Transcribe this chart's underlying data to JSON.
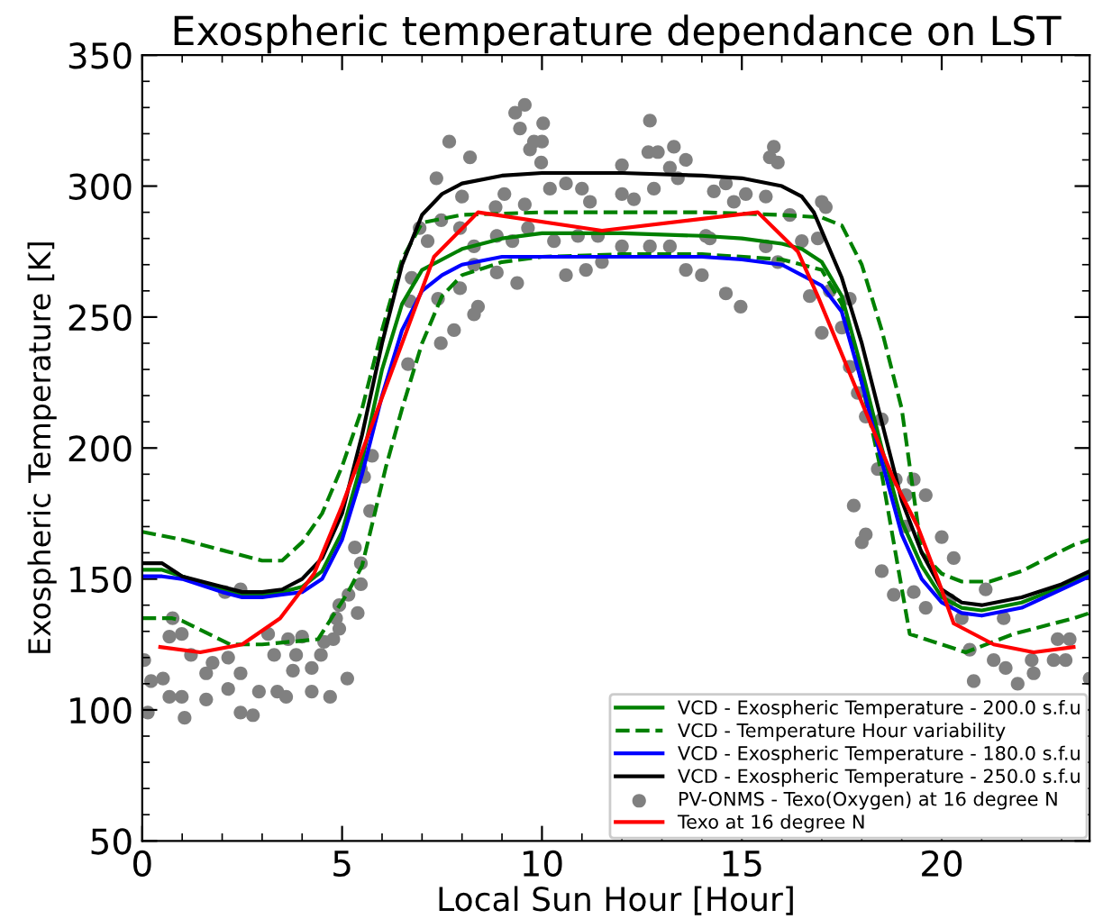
{
  "chart_data": {
    "type": "line",
    "title": "Exospheric temperature dependance on LST",
    "xlabel": "Local Sun Hour [Hour]",
    "ylabel": "Exospheric Temperature [K]",
    "xlim": [
      0,
      23.7
    ],
    "ylim": [
      50,
      350
    ],
    "xticks": [
      0,
      5,
      10,
      15,
      20
    ],
    "yticks": [
      50,
      100,
      150,
      200,
      250,
      300,
      350
    ],
    "legend": "bottom right",
    "grid": false,
    "series": [
      {
        "name": "VCD - Exospheric Temperature - 200.0 s.f.u",
        "color": "#008000",
        "line_style": "solid",
        "x": [
          0,
          0.5,
          1,
          2,
          2.5,
          3,
          3.5,
          4,
          4.5,
          5,
          5.5,
          6,
          6.5,
          7,
          8,
          9,
          10,
          12,
          14,
          15,
          16,
          16.5,
          17,
          17.5,
          18,
          18.5,
          19,
          19.5,
          20,
          20.5,
          21,
          22,
          23,
          23.7
        ],
        "values": [
          153.5,
          153.5,
          151,
          146,
          144,
          144,
          145,
          147,
          153,
          168,
          195,
          230,
          255,
          268,
          276,
          280,
          282,
          282,
          281,
          280,
          278,
          276,
          271,
          258,
          230,
          200,
          172,
          155,
          143,
          139,
          138,
          141,
          147,
          152
        ]
      },
      {
        "name": "VCD - Temperature Hour variability",
        "color": "#008000",
        "line_style": "dashed",
        "x": [
          0,
          1,
          2,
          3,
          3.5,
          4,
          4.5,
          5,
          5.5,
          6,
          6.5,
          7,
          8,
          10,
          12,
          14,
          16,
          17,
          17.5,
          18,
          18.5,
          19,
          19.5,
          20,
          20.5,
          21.2,
          22,
          23.3,
          23.7
        ],
        "values": [
          168,
          165,
          161,
          157,
          157,
          164,
          175,
          193,
          215,
          245,
          272,
          286,
          289,
          290,
          290,
          290,
          289,
          288,
          285,
          270,
          245,
          215,
          160,
          152,
          149,
          149,
          153,
          163,
          165
        ]
      },
      {
        "color": "#008000",
        "line_style": "dashed",
        "x": [
          0,
          0.75,
          1,
          2.2,
          3,
          4.4,
          5.15,
          5.5,
          6.1,
          6.5,
          7,
          7.5,
          8,
          9,
          10,
          12,
          14,
          16,
          17,
          17.5,
          18,
          18.5,
          19.2,
          20.6,
          21.8,
          23.3,
          23.7
        ],
        "values": [
          135,
          135,
          134,
          125,
          125,
          127,
          145,
          155,
          193,
          215,
          240,
          258,
          266,
          271,
          273,
          274,
          274,
          272,
          268,
          255,
          225,
          190,
          129,
          122,
          129,
          135,
          137
        ]
      },
      {
        "name": "VCD - Exospheric Temperature - 180.0 s.f.u",
        "color": "#0000ff",
        "line_style": "solid",
        "x": [
          0,
          0.5,
          1,
          2,
          2.5,
          3,
          3.5,
          4,
          4.5,
          5,
          5.5,
          6,
          6.5,
          7,
          7.5,
          8,
          9,
          10,
          12,
          14,
          15,
          16,
          16.5,
          17,
          17.5,
          18,
          18.5,
          19,
          19.5,
          20,
          20.5,
          21,
          22,
          23,
          23.7
        ],
        "values": [
          151,
          151,
          150,
          145,
          143,
          143,
          144,
          145,
          150,
          165,
          190,
          220,
          245,
          260,
          266,
          270,
          273,
          273,
          273,
          273,
          272,
          270,
          266,
          262,
          252,
          225,
          195,
          167,
          150,
          141,
          137,
          136,
          139,
          146,
          151
        ]
      },
      {
        "name": "VCD - Exospheric Temperature - 250.0 s.f.u",
        "color": "#000000",
        "line_style": "solid",
        "x": [
          0,
          0.5,
          1,
          2,
          2.5,
          3,
          3.5,
          4,
          4.5,
          5,
          5.5,
          6,
          6.5,
          7,
          7.5,
          8,
          9,
          10,
          12,
          14,
          15,
          16,
          16.5,
          16.8,
          17.5,
          18,
          18.5,
          19,
          19.5,
          20,
          20.5,
          21,
          22,
          23,
          23.7
        ],
        "values": [
          156,
          156,
          151,
          147,
          145,
          145,
          146,
          150,
          158,
          175,
          205,
          240,
          270,
          289,
          297,
          301,
          304,
          305,
          305,
          304,
          303,
          300,
          296,
          290,
          265,
          240,
          210,
          180,
          160,
          146,
          141,
          140,
          143,
          148,
          153
        ]
      },
      {
        "name": "PV-ONMS - Texo(Oxygen) at 16 degree N",
        "type": "scatter",
        "color": "#808080",
        "marker": "circle",
        "x": [
          9.57,
          9.33,
          9.45,
          9.8,
          10.0,
          9.7,
          9.98,
          10.03,
          7.68,
          8.2,
          12.7,
          12.66,
          12.9,
          13.3,
          13.2,
          13.6,
          12.0,
          15.8,
          15.7,
          15.9,
          7.36,
          8.0,
          8.84,
          9.06,
          9.57,
          10.2,
          10.6,
          11.0,
          11.2,
          12.0,
          12.3,
          12.8,
          13.4,
          14.3,
          14.6,
          14.8,
          15.1,
          15.6,
          16.2,
          17.0,
          17.1,
          6.74,
          7.14,
          6.94,
          7.48,
          7.95,
          8.3,
          8.87,
          9.26,
          9.65,
          10.3,
          10.9,
          11.4,
          12.0,
          12.7,
          13.2,
          14.1,
          14.2,
          15.6,
          15.9,
          16.5,
          16.9,
          7.95,
          8.3,
          8.87,
          9.38,
          10.6,
          11.1,
          11.5,
          13.6,
          14.0,
          14.6,
          14.97,
          16.7,
          17.2,
          17.7,
          7.4,
          7.8,
          7.47,
          8.3,
          8.4,
          6.7,
          6.65,
          17.0,
          17.5,
          17.7,
          17.9,
          18.1,
          18.5,
          18.4,
          19.1,
          19.6,
          5.75,
          5.55,
          0.05,
          0.22,
          0.14,
          0.76,
          0.68,
          0.99,
          1.22,
          0.52,
          0.68,
          0.99,
          1.06,
          1.6,
          1.6,
          1.76,
          2.15,
          2.15,
          2.46,
          2.07,
          2.46,
          2.46,
          2.77,
          2.92,
          3.15,
          3.3,
          3.38,
          3.6,
          3.65,
          3.77,
          3.85,
          4.0,
          4.24,
          4.24,
          4.47,
          4.55,
          4.7,
          4.78,
          4.93,
          5.13,
          4.85,
          4.93,
          5.16,
          5.32,
          5.47,
          5.39,
          5.47,
          5.7,
          5.47,
          17.8,
          18.0,
          18.1,
          18.5,
          18.8,
          18.85,
          19.3,
          19.1,
          19.3,
          19.6,
          20.0,
          20.3,
          20.5,
          20.2,
          20.7,
          20.8,
          21.1,
          21.3,
          21.55,
          21.6,
          21.9,
          22.25,
          22.3,
          22.8,
          22.9,
          23.2,
          23.1,
          23.7
        ],
        "values": [
          331,
          328,
          322,
          317,
          317,
          314,
          309,
          324,
          317,
          311,
          325,
          313,
          313,
          315,
          307,
          310,
          308,
          315,
          311,
          309,
          303,
          296,
          292,
          297,
          293,
          299,
          301,
          299,
          294,
          297,
          295,
          299,
          303,
          298,
          301,
          294,
          297,
          296,
          289,
          294,
          292,
          265,
          279,
          284,
          287,
          284,
          277,
          281,
          279,
          284,
          279,
          281,
          281,
          277,
          277,
          277,
          281,
          280,
          277,
          271,
          279,
          280,
          261,
          270,
          267,
          263,
          266,
          268,
          271,
          268,
          266,
          259,
          254,
          258,
          260,
          257,
          257,
          245,
          240,
          251,
          254,
          256,
          232,
          244,
          246,
          231,
          221,
          212,
          211,
          192,
          182,
          182,
          197,
          189,
          119,
          111,
          99,
          135,
          128,
          129,
          121,
          112,
          105,
          105,
          97,
          114,
          104,
          118,
          120,
          108,
          146,
          145,
          114,
          99,
          98,
          107,
          129,
          121,
          107,
          105,
          127,
          115,
          121,
          128,
          116,
          107,
          121,
          126,
          105,
          127,
          131,
          112,
          135,
          140,
          144,
          162,
          156,
          137,
          148,
          176,
          192,
          178,
          164,
          167,
          153,
          144,
          188,
          188,
          170,
          145,
          139,
          166,
          158,
          135,
          142,
          123,
          111,
          146,
          119,
          135,
          116,
          110,
          119,
          114,
          119,
          127,
          127,
          119,
          112
        ]
      },
      {
        "name": "Texo at 16 degree N",
        "color": "#ff0000",
        "line_style": "solid",
        "x": [
          0.45,
          1.45,
          2.5,
          3.45,
          4.3,
          5,
          7.3,
          8.4,
          11.5,
          15.4,
          16.4,
          16.9,
          18.8,
          19.4,
          19.9,
          20.3,
          21.3,
          22.3,
          23.3
        ],
        "values": [
          124,
          122,
          125,
          135,
          152,
          178,
          273,
          290,
          283,
          290,
          275,
          258,
          188,
          170,
          150,
          133,
          125,
          122,
          124
        ]
      }
    ]
  }
}
